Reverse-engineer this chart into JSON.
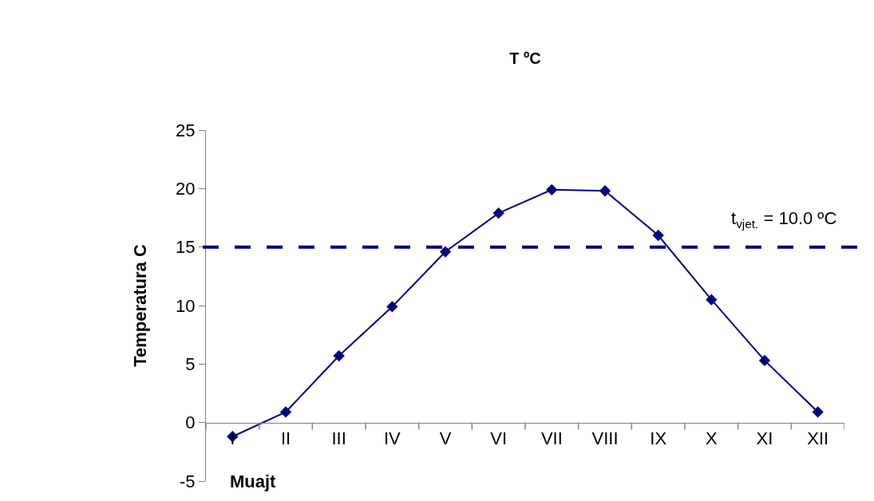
{
  "chart_data": {
    "type": "line",
    "title": "T ºC",
    "xlabel": "Muajt",
    "ylabel": "Temperatura C",
    "categories": [
      "I",
      "II",
      "III",
      "IV",
      "V",
      "VI",
      "VII",
      "VIII",
      "IX",
      "X",
      "XI",
      "XII"
    ],
    "series": [
      {
        "color": "#000080",
        "values": [
          -1.2,
          0.9,
          5.7,
          9.9,
          14.6,
          17.9,
          19.9,
          19.8,
          16.0,
          10.5,
          5.3,
          0.9
        ]
      }
    ],
    "ylim": [
      -5,
      25
    ],
    "yticks": [
      -5,
      0,
      5,
      10,
      15,
      20,
      25
    ],
    "ref_lines": [
      {
        "axis": "y",
        "value": 15,
        "color": "#000080",
        "line_style": "dashed"
      }
    ],
    "annotations": [
      "t$_{vjet.}$ = 10.0 ºC"
    ],
    "marker": "diamond",
    "line_style": "solid"
  }
}
